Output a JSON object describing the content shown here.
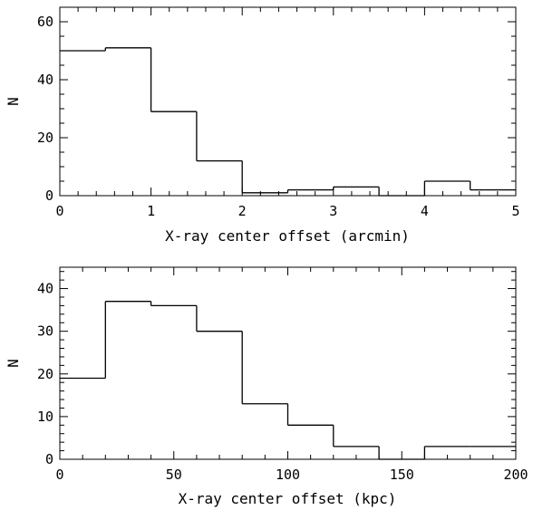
{
  "chart_data": [
    {
      "type": "histogram",
      "xlabel": "X-ray center offset (arcmin)",
      "ylabel": "N",
      "xlim": [
        0,
        5
      ],
      "ylim": [
        0,
        65
      ],
      "x_ticks": [
        0,
        1,
        2,
        3,
        4,
        5
      ],
      "y_ticks": [
        0,
        20,
        40,
        60
      ],
      "x_minor_step": 0.2,
      "y_minor_step": 5,
      "bin_edges": [
        0,
        0.5,
        1.0,
        1.5,
        2.0,
        2.5,
        3.0,
        3.5,
        4.0,
        4.5,
        5.0
      ],
      "counts": [
        50,
        51,
        29,
        12,
        1,
        2,
        3,
        0,
        5,
        2
      ]
    },
    {
      "type": "histogram",
      "xlabel": "X-ray center offset (kpc)",
      "ylabel": "N",
      "xlim": [
        0,
        200
      ],
      "ylim": [
        0,
        45
      ],
      "x_ticks": [
        0,
        50,
        100,
        150,
        200
      ],
      "y_ticks": [
        0,
        10,
        20,
        30,
        40
      ],
      "x_minor_step": 10,
      "y_minor_step": 2,
      "bin_edges": [
        0,
        20,
        40,
        60,
        80,
        100,
        120,
        140,
        160,
        180,
        200
      ],
      "counts": [
        19,
        37,
        36,
        30,
        13,
        8,
        3,
        0,
        3,
        3
      ]
    }
  ]
}
